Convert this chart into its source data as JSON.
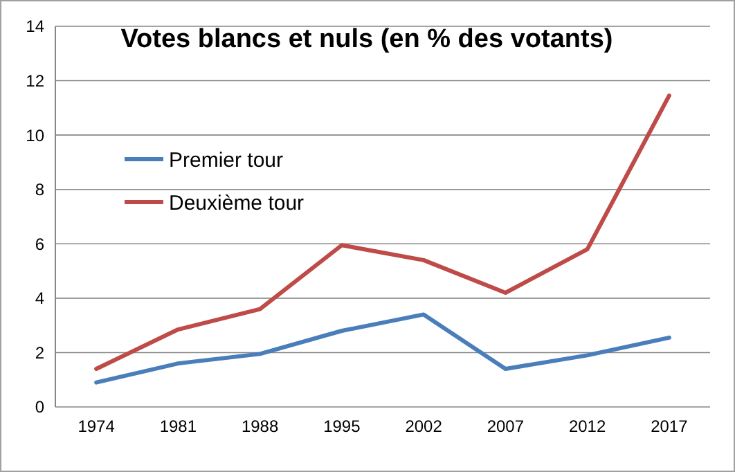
{
  "chart_data": {
    "type": "line",
    "title": "Votes blancs et nuls (en % des votants)",
    "categories": [
      "1974",
      "1981",
      "1988",
      "1995",
      "2002",
      "2007",
      "2012",
      "2017"
    ],
    "series": [
      {
        "name": "Premier tour",
        "color": "#4a7ebb",
        "values": [
          0.9,
          1.6,
          1.95,
          2.8,
          3.4,
          1.4,
          1.9,
          2.55
        ]
      },
      {
        "name": "Deuxième tour",
        "color": "#be4b48",
        "values": [
          1.4,
          2.85,
          3.6,
          5.95,
          5.4,
          4.2,
          5.8,
          11.45
        ]
      }
    ],
    "ylim": [
      0,
      14
    ],
    "yticks": [
      0,
      2,
      4,
      6,
      8,
      10,
      12,
      14
    ],
    "grid": "y",
    "legend": "top left",
    "marker": "none",
    "line_style": "solid"
  }
}
